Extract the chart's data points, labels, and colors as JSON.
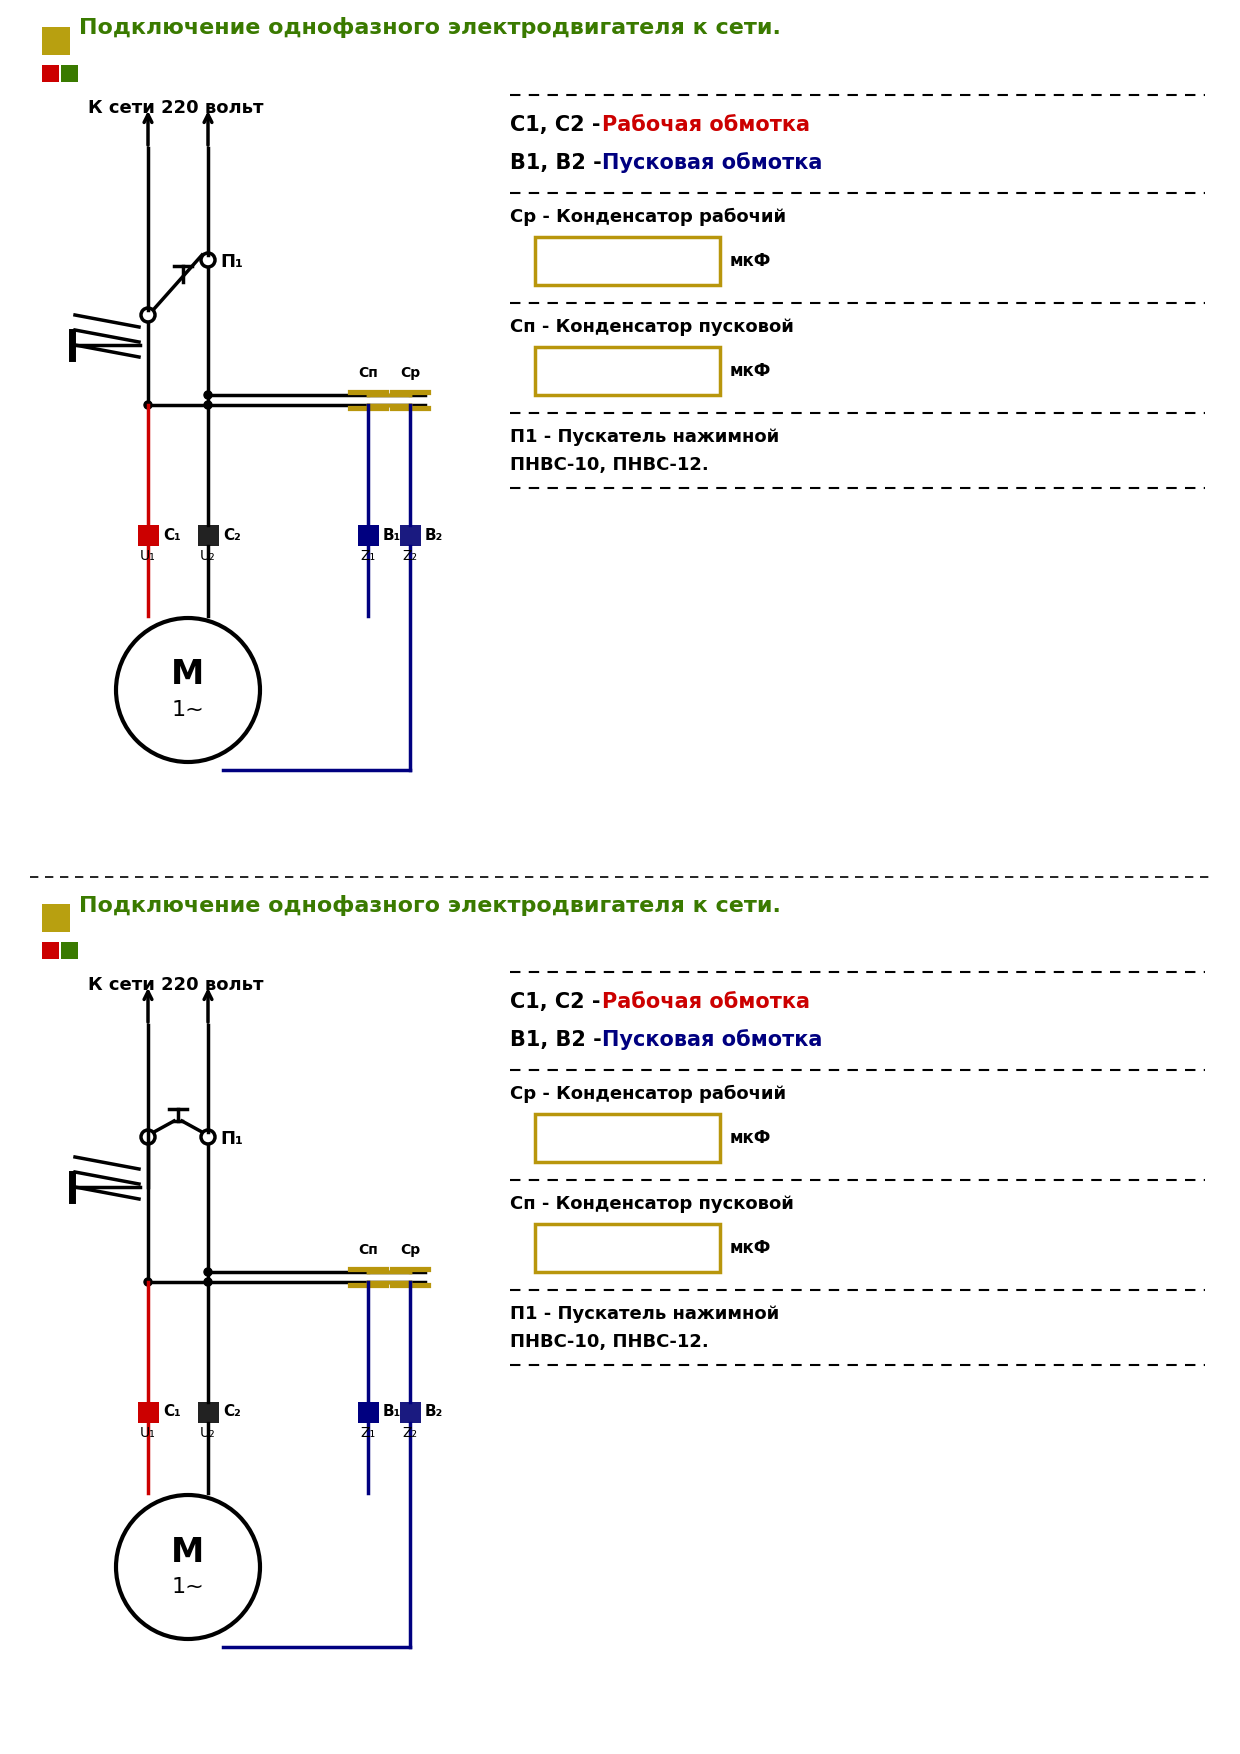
{
  "title": "Подключение однофазного электродвигателя к сети.",
  "title_color": "#3a7a00",
  "network_label": "К сети 220 вольт",
  "bg_color": "#ffffff",
  "gold_color": "#b8960c",
  "wire_black": "#000000",
  "wire_red": "#cc0000",
  "wire_blue": "#000080",
  "terminal_red": "#cc0000",
  "terminal_blue": "#000080",
  "terminal_black": "#222222",
  "terminal_dkblue": "#1a1a80",
  "legend_yellow": "#b8a010",
  "legend_red": "#cc0000",
  "legend_green": "#3a7a00",
  "right_c1c2_black": "С1, С2 - ",
  "right_c1c2_colored": "Рабочая обмотка",
  "right_c1c2_color": "#cc0000",
  "right_b1b2_black": "В1, В2 - ",
  "right_b1b2_colored": "Пусковая обмотка",
  "right_b1b2_color": "#000080",
  "right_cp_label": "Ср - Конденсатор рабочий",
  "right_cn_label": "Сп - Конденсатор пусковой",
  "right_mkf": "мкФ",
  "right_p1_line1": "П1 - Пускатель нажимной",
  "right_p1_line2": "ПНВС-10, ПНВС-12."
}
